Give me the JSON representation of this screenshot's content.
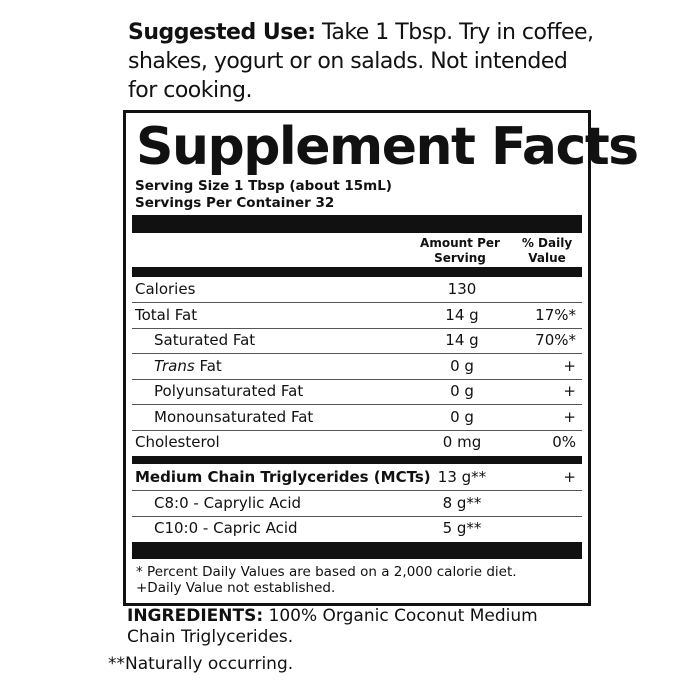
{
  "suggested_use": {
    "label": "Suggested Use:",
    "text": "Take 1 Tbsp. Try in coffee, shakes, yogurt or on salads. Not intended for cooking."
  },
  "facts": {
    "title": "Supplement Facts",
    "serving_size": "Serving Size 1 Tbsp (about 15mL)",
    "servings_per_container": "Servings Per Container 32",
    "header_amount": "Amount Per Serving",
    "header_dv": "% Daily Value",
    "rows": [
      {
        "name": "Calories",
        "amount": "130",
        "dv": ""
      },
      {
        "name": "Total Fat",
        "amount": "14 g",
        "dv": "17%*"
      },
      {
        "name": "Saturated Fat",
        "amount": "14 g",
        "dv": "70%*",
        "indent": true
      },
      {
        "name": "Trans",
        "name_suffix": " Fat",
        "amount": "0 g",
        "dv": "+",
        "indent": true
      },
      {
        "name": "Polyunsaturated Fat",
        "amount": "0 g",
        "dv": "+",
        "indent": true
      },
      {
        "name": "Monounsaturated Fat",
        "amount": "0 g",
        "dv": "+",
        "indent": true
      },
      {
        "name": "Cholesterol",
        "amount": "0 mg",
        "dv": "0%"
      }
    ],
    "mct_rows": [
      {
        "name": "Medium Chain Triglycerides (MCTs)",
        "amount": "13 g**",
        "dv": "+",
        "bold": true
      },
      {
        "name": "C8:0 - Caprylic Acid",
        "amount": "8 g**",
        "dv": "",
        "indent": true
      },
      {
        "name": "C10:0 - Capric Acid",
        "amount": "5 g**",
        "dv": "",
        "indent": true
      }
    ],
    "footnote_1": "* Percent Daily Values are based on a 2,000 calorie diet.",
    "footnote_2": "+Daily Value not established."
  },
  "ingredients": {
    "label": "INGREDIENTS:",
    "text": "100% Organic Coconut Medium Chain Triglycerides."
  },
  "naturally_occurring": "**Naturally occurring."
}
